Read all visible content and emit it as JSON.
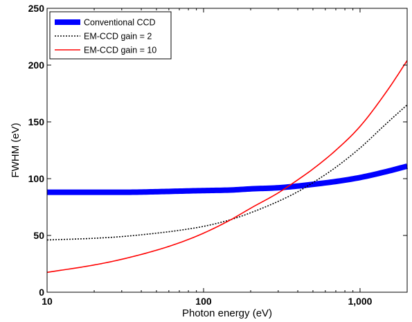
{
  "chart_data": {
    "type": "line",
    "title": "",
    "xlabel": "Photon energy (eV)",
    "ylabel": "FWHM (eV)",
    "xscale": "log",
    "xlim": [
      10,
      2000
    ],
    "ylim": [
      0,
      250
    ],
    "x_ticks": [
      {
        "value": 10,
        "label": "10"
      },
      {
        "value": 100,
        "label": "100"
      },
      {
        "value": 1000,
        "label": "1,000"
      }
    ],
    "y_ticks": [
      {
        "value": 0,
        "label": "0"
      },
      {
        "value": 50,
        "label": "50"
      },
      {
        "value": 100,
        "label": "100"
      },
      {
        "value": 150,
        "label": "150"
      },
      {
        "value": 200,
        "label": "200"
      },
      {
        "value": 250,
        "label": "250"
      }
    ],
    "grid": false,
    "legend_position": "top-left",
    "series": [
      {
        "name": "Conventional CCD",
        "color": "#0000ff",
        "style": "solid-thick",
        "x": [
          10,
          20,
          30,
          50,
          70,
          100,
          150,
          200,
          300,
          400,
          500,
          700,
          1000,
          1500,
          2000
        ],
        "y": [
          88,
          88,
          88,
          88.5,
          89,
          89.5,
          90,
          91,
          92,
          93.5,
          95,
          97.5,
          101,
          106.5,
          111
        ]
      },
      {
        "name": "EM-CCD gain = 2",
        "color": "#000000",
        "style": "dotted",
        "x": [
          10,
          20,
          30,
          50,
          70,
          100,
          150,
          200,
          300,
          400,
          500,
          700,
          1000,
          1500,
          2000
        ],
        "y": [
          46,
          47.5,
          49,
          52,
          54.5,
          58,
          64,
          70,
          80,
          88.5,
          96.5,
          110,
          127,
          149.5,
          165
        ]
      },
      {
        "name": "EM-CCD gain = 10",
        "color": "#ff0000",
        "style": "solid",
        "x": [
          10,
          20,
          30,
          50,
          70,
          100,
          150,
          200,
          300,
          400,
          500,
          700,
          1000,
          1500,
          2000
        ],
        "y": [
          17.5,
          24,
          29,
          37,
          43.5,
          52,
          64,
          74,
          87.5,
          99,
          108.5,
          125,
          146,
          178,
          204
        ]
      }
    ]
  }
}
